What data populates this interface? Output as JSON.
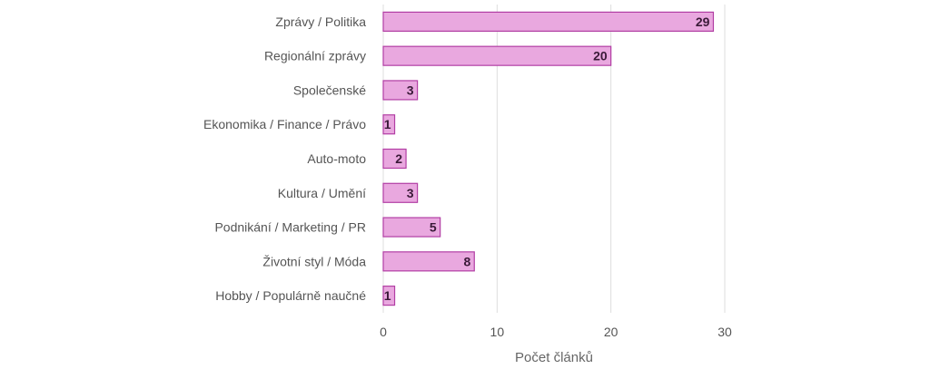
{
  "chart_data": {
    "type": "bar",
    "orientation": "horizontal",
    "categories": [
      "Zprávy / Politika",
      "Regionální zprávy",
      "Společenské",
      "Ekonomika / Finance / Právo",
      "Auto-moto",
      "Kultura / Umění",
      "Podnikání / Marketing / PR",
      "Životní styl / Móda",
      "Hobby / Populárně naučné"
    ],
    "values": [
      29,
      20,
      3,
      1,
      2,
      3,
      5,
      8,
      1
    ],
    "xlabel": "Počet článků",
    "ylabel": "",
    "xlim": [
      0,
      30
    ],
    "xticks": [
      0,
      10,
      20,
      30
    ],
    "grid": "vertical",
    "data_labels": true,
    "colors": {
      "bar_fill": "#e9a8df",
      "bar_stroke": "#b23ea4",
      "grid": "#dddddd"
    }
  }
}
